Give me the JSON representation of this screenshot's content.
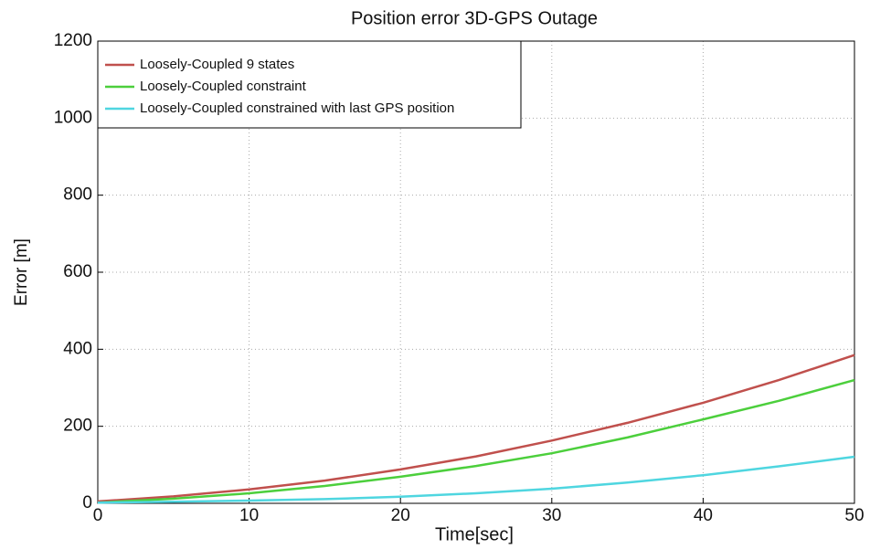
{
  "chart_data": {
    "type": "line",
    "title": "Position error 3D-GPS Outage",
    "x_label": "Time[sec]",
    "y_label": "Error [m]",
    "x": [
      0,
      5,
      10,
      15,
      20,
      25,
      30,
      35,
      40,
      45,
      50
    ],
    "series": [
      {
        "name": "Loosely-Coupled 9 states",
        "color": "#c0504d",
        "values": [
          5,
          18,
          36,
          59,
          88,
          122,
          163,
          209,
          261,
          320,
          385
        ]
      },
      {
        "name": "Loosely-Coupled constraint",
        "color": "#4ccf3c",
        "values": [
          2,
          12,
          26,
          45,
          69,
          97,
          130,
          171,
          218,
          266,
          320
        ]
      },
      {
        "name": "Loosely-Coupled constrained with last GPS position",
        "color": "#4fd6e0",
        "values": [
          2,
          4,
          7,
          11,
          17,
          26,
          38,
          54,
          73,
          96,
          121
        ]
      }
    ],
    "xlim": [
      0,
      50
    ],
    "xticks": [
      0,
      10,
      20,
      30,
      40,
      50
    ],
    "ylim": [
      0,
      1200
    ],
    "yticks": [
      0,
      200,
      400,
      600,
      800,
      1000,
      1200
    ],
    "grid": true,
    "legend": "top-left"
  }
}
